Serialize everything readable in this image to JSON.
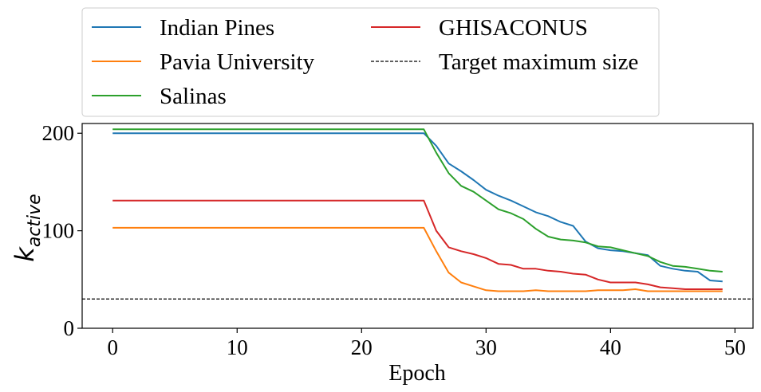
{
  "chart_data": {
    "type": "line",
    "xlabel": "Epoch",
    "ylabel_base": "k",
    "ylabel_sub": "active",
    "xlim": [
      -2.45,
      51.45
    ],
    "ylim": [
      0,
      210
    ],
    "xticks": [
      0,
      10,
      20,
      30,
      40,
      50
    ],
    "yticks": [
      0,
      100,
      200
    ],
    "legend_position": "above-plot",
    "series": [
      {
        "name": "Indian Pines",
        "color": "#1f77b4",
        "x": [
          0,
          25,
          26,
          27,
          28,
          29,
          30,
          31,
          32,
          33,
          34,
          35,
          36,
          37,
          38,
          39,
          40,
          41,
          42,
          43,
          44,
          45,
          46,
          47,
          48,
          49
        ],
        "y": [
          200,
          200,
          187,
          169,
          161,
          152,
          142,
          136,
          131,
          125,
          119,
          115,
          109,
          105,
          89,
          82,
          80,
          79,
          77,
          75,
          64,
          61,
          59,
          58,
          49,
          48
        ]
      },
      {
        "name": "Pavia University",
        "color": "#ff7f0e",
        "x": [
          0,
          25,
          26,
          27,
          28,
          29,
          30,
          31,
          32,
          33,
          34,
          35,
          36,
          37,
          38,
          39,
          40,
          41,
          42,
          43,
          44,
          45,
          46,
          47,
          48,
          49
        ],
        "y": [
          103,
          103,
          79,
          57,
          47,
          43,
          39,
          38,
          38,
          38,
          39,
          38,
          38,
          38,
          38,
          39,
          39,
          39,
          40,
          38,
          38,
          38,
          38,
          38,
          38,
          38
        ]
      },
      {
        "name": "Salinas",
        "color": "#2ca02c",
        "x": [
          0,
          25,
          26,
          27,
          28,
          29,
          30,
          31,
          32,
          33,
          34,
          35,
          36,
          37,
          38,
          39,
          40,
          41,
          42,
          43,
          44,
          45,
          46,
          47,
          48,
          49
        ],
        "y": [
          204,
          204,
          180,
          159,
          146,
          140,
          131,
          122,
          118,
          112,
          102,
          94,
          91,
          90,
          88,
          84,
          83,
          80,
          77,
          74,
          68,
          64,
          63,
          61,
          59,
          58
        ]
      },
      {
        "name": "GHISACONUS",
        "color": "#d62728",
        "x": [
          0,
          25,
          26,
          27,
          28,
          29,
          30,
          31,
          32,
          33,
          34,
          35,
          36,
          37,
          38,
          39,
          40,
          41,
          42,
          43,
          44,
          45,
          46,
          47,
          48,
          49
        ],
        "y": [
          131,
          131,
          100,
          83,
          79,
          76,
          72,
          66,
          65,
          61,
          61,
          59,
          58,
          56,
          55,
          50,
          47,
          47,
          47,
          45,
          42,
          41,
          40,
          40,
          40,
          40
        ]
      }
    ],
    "reference_line": {
      "name": "Target maximum size",
      "y": 30,
      "color": "#000000",
      "style": "dashed"
    }
  }
}
